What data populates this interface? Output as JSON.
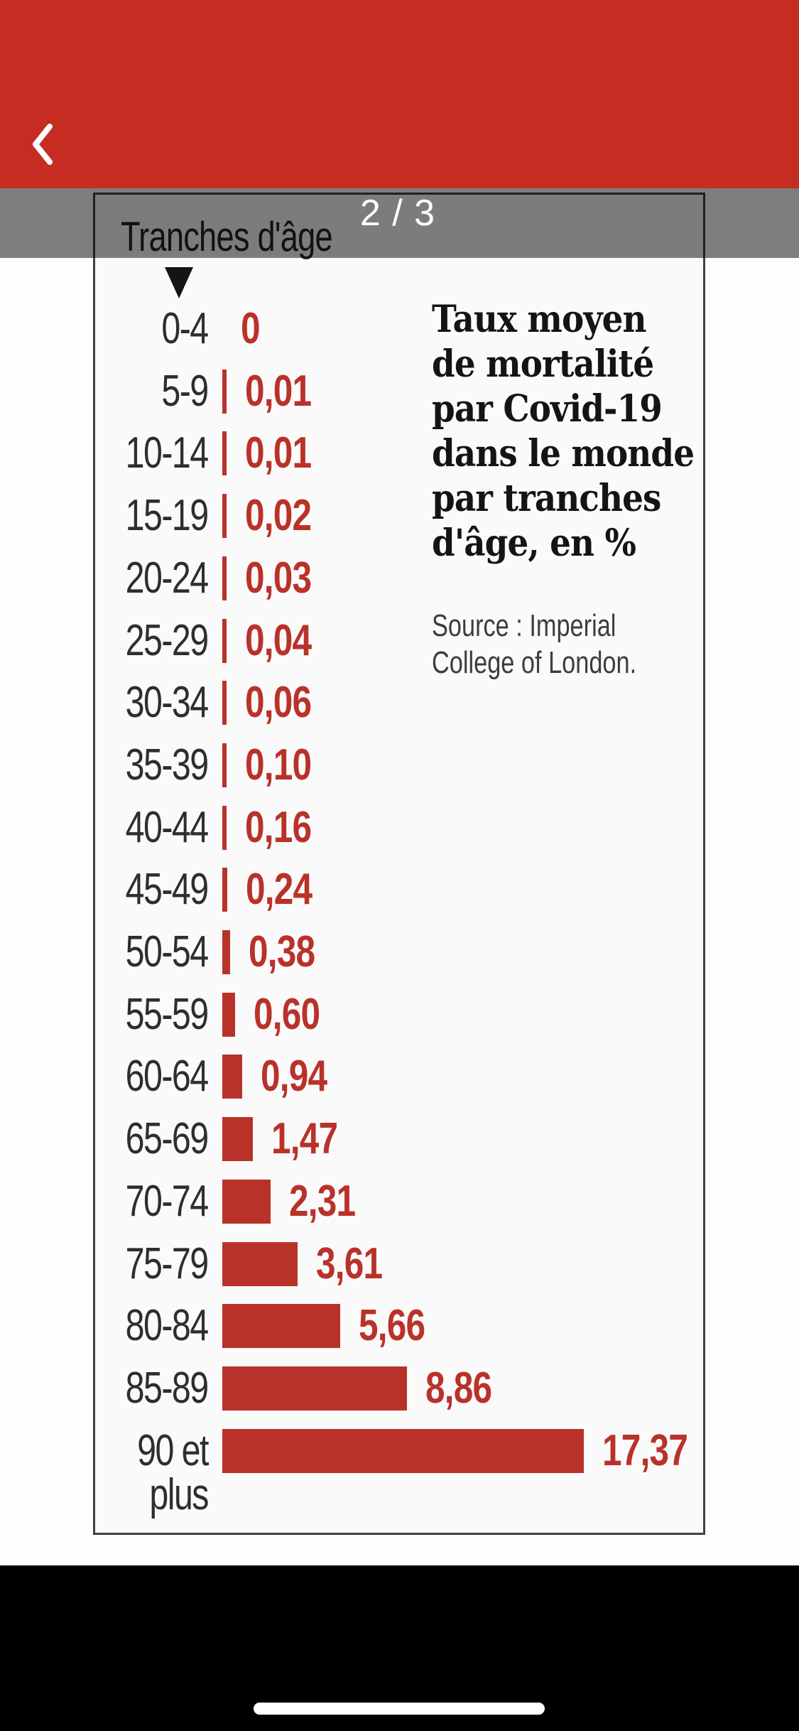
{
  "header": {
    "back_icon": "chevron-left-icon"
  },
  "pager": {
    "label": "2 / 3"
  },
  "chart": {
    "column_header": "Tranches d'âge",
    "title": "Taux moyen\nde mortalité\npar Covid-19\ndans le monde\npar tranches\nd'âge, en %",
    "source": "Source : Imperial\nCollege of London."
  },
  "chart_data": {
    "type": "bar",
    "orientation": "horizontal",
    "title": "Taux moyen de mortalité par Covid-19 dans le monde par tranches d'âge, en %",
    "source": "Source : Imperial College of London.",
    "unit": "%",
    "categories": [
      "0-4",
      "5-9",
      "10-14",
      "15-19",
      "20-24",
      "25-29",
      "30-34",
      "35-39",
      "40-44",
      "45-49",
      "50-54",
      "55-59",
      "60-64",
      "65-69",
      "70-74",
      "75-79",
      "80-84",
      "85-89",
      "90 et\nplus"
    ],
    "values": [
      0,
      0.01,
      0.01,
      0.02,
      0.03,
      0.04,
      0.06,
      0.1,
      0.16,
      0.24,
      0.38,
      0.6,
      0.94,
      1.47,
      2.31,
      3.61,
      5.66,
      8.86,
      17.37
    ],
    "value_labels": [
      "0",
      "0,01",
      "0,01",
      "0,02",
      "0,03",
      "0,04",
      "0,06",
      "0,10",
      "0,16",
      "0,24",
      "0,38",
      "0,60",
      "0,94",
      "1,47",
      "2,31",
      "3,61",
      "5,66",
      "8,86",
      "17,37"
    ],
    "xlim": [
      0,
      18
    ],
    "grid": false,
    "legend": false
  },
  "colors": {
    "header-red": "#c52c22",
    "bar-red": "#b9322a",
    "overlay-gray": "#7e7e7e",
    "page-black": "#000000"
  }
}
